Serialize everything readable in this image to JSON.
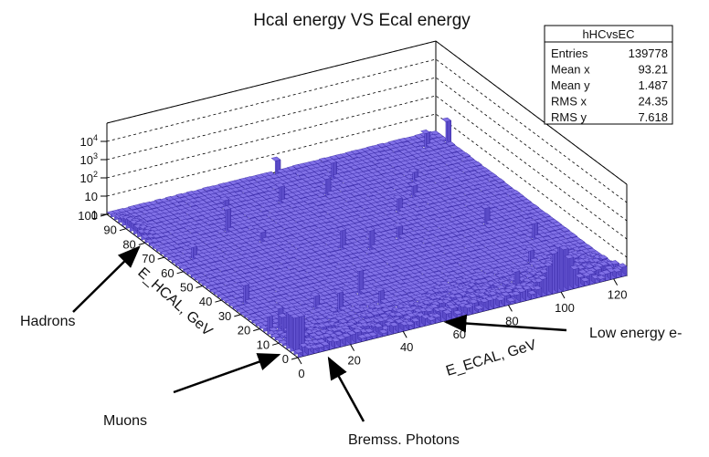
{
  "chart_data": {
    "type": "lego3d",
    "title": "Hcal energy VS Ecal energy",
    "xlabel": "E_ECAL, GeV",
    "ylabel": "E_HCAL, GeV",
    "z_log": true,
    "x_range": [
      0,
      125
    ],
    "y_range": [
      0,
      100
    ],
    "z_range": [
      1,
      100000
    ],
    "x_ticks": [
      "0",
      "20",
      "40",
      "60",
      "80",
      "100",
      "120"
    ],
    "y_ticks": [
      "0",
      "10",
      "20",
      "30",
      "40",
      "50",
      "60",
      "70",
      "80",
      "90",
      "100"
    ],
    "z_ticks": [
      {
        "base": "1",
        "exp": ""
      },
      {
        "base": "10",
        "exp": ""
      },
      {
        "base": "10",
        "exp": "2"
      },
      {
        "base": "10",
        "exp": "3"
      },
      {
        "base": "10",
        "exp": "4"
      }
    ],
    "grid": true,
    "bar_color": "#6a5ad8",
    "bar_edge_color": "#2a1a9a",
    "features": {
      "electron_peak": {
        "x": 100,
        "y": 0,
        "z_log": 2.6
      },
      "hadron_ridge": {
        "x": 0,
        "y": 88,
        "z_log": 0.6
      },
      "muon_spike": {
        "x": 1,
        "y": 5,
        "z_log": 2.0
      }
    },
    "stats": {
      "name": "hHCvsEC",
      "rows": [
        {
          "label": "Entries",
          "value": "139778"
        },
        {
          "label": "Mean x",
          "value": "93.21"
        },
        {
          "label": "Mean y",
          "value": "1.487"
        },
        {
          "label": "RMS x",
          "value": "24.35"
        },
        {
          "label": "RMS y",
          "value": "7.618"
        }
      ]
    },
    "annotations": [
      "Hadrons",
      "Muons",
      "Bremss. Photons",
      "Low energy e-"
    ]
  }
}
